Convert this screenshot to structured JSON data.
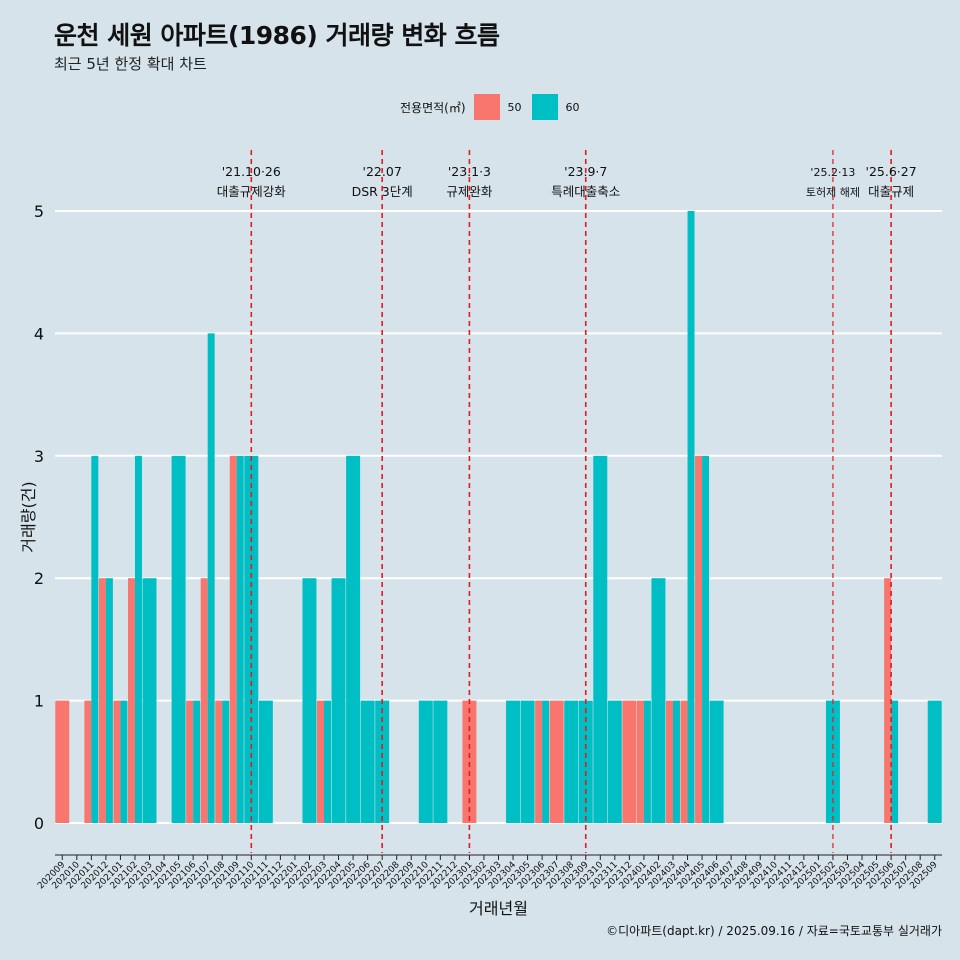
{
  "title": "운천 세원 아파트(1986) 거래량 변화 흐름",
  "subtitle": "최근 5년 한정 확대 차트",
  "caption": "©디아파트(dapt.kr) / 2025.09.16 / 자료=국토교통부 실거래가",
  "colors": {
    "s50": "#f8766d",
    "s60": "#00bfc4",
    "event": "#e41a1c",
    "grid": "#ffffff",
    "background": "#d6e3ea"
  },
  "chart_data": {
    "type": "bar",
    "xlabel": "거래년월",
    "ylabel": "거래량(건)",
    "ylim": [
      0,
      5
    ],
    "yticks": [
      0,
      1,
      2,
      3,
      4,
      5
    ],
    "legend": {
      "title": "전용면적(㎡)",
      "position": "top"
    },
    "categories": [
      "202009",
      "202010",
      "202011",
      "202012",
      "202101",
      "202102",
      "202103",
      "202104",
      "202105",
      "202106",
      "202107",
      "202108",
      "202109",
      "202110",
      "202111",
      "202112",
      "202201",
      "202202",
      "202203",
      "202204",
      "202205",
      "202206",
      "202207",
      "202208",
      "202209",
      "202210",
      "202211",
      "202212",
      "202301",
      "202302",
      "202303",
      "202304",
      "202305",
      "202306",
      "202307",
      "202308",
      "202309",
      "202310",
      "202311",
      "202312",
      "202401",
      "202402",
      "202403",
      "202404",
      "202405",
      "202406",
      "202407",
      "202408",
      "202409",
      "202410",
      "202411",
      "202412",
      "202501",
      "202502",
      "202503",
      "202504",
      "202505",
      "202506",
      "202507",
      "202508",
      "202509"
    ],
    "series": [
      {
        "name": "50",
        "values": [
          1,
          0,
          1,
          2,
          1,
          2,
          0,
          0,
          0,
          1,
          2,
          1,
          3,
          0,
          0,
          0,
          0,
          0,
          1,
          0,
          0,
          0,
          0,
          0,
          0,
          0,
          0,
          0,
          1,
          0,
          0,
          0,
          0,
          1,
          1,
          0,
          0,
          0,
          0,
          1,
          1,
          0,
          1,
          1,
          3,
          0,
          0,
          0,
          0,
          0,
          0,
          0,
          0,
          0,
          0,
          0,
          0,
          2,
          0,
          0,
          0
        ]
      },
      {
        "name": "60",
        "values": [
          0,
          0,
          3,
          2,
          1,
          3,
          2,
          0,
          3,
          1,
          4,
          1,
          3,
          3,
          1,
          0,
          0,
          2,
          1,
          2,
          3,
          1,
          1,
          0,
          0,
          1,
          1,
          0,
          0,
          0,
          0,
          1,
          1,
          1,
          0,
          1,
          1,
          3,
          1,
          0,
          1,
          2,
          1,
          5,
          3,
          1,
          0,
          0,
          0,
          0,
          0,
          0,
          0,
          1,
          0,
          0,
          0,
          1,
          0,
          0,
          1
        ]
      }
    ],
    "events": [
      {
        "month": "202110",
        "date": "'21.10·26",
        "label": "대출규제강화"
      },
      {
        "month": "202207",
        "date": "'22.07",
        "label": "DSR 3단계"
      },
      {
        "month": "202301",
        "date": "'23.1·3",
        "label": "규제완화"
      },
      {
        "month": "202309",
        "date": "'23.9·7",
        "label": "특례대출축소"
      },
      {
        "month": "202502",
        "date": "'25.2·13",
        "label": "토허제 해제"
      },
      {
        "month": "202506",
        "date": "'25.6·27",
        "label": "대출규제"
      }
    ]
  }
}
